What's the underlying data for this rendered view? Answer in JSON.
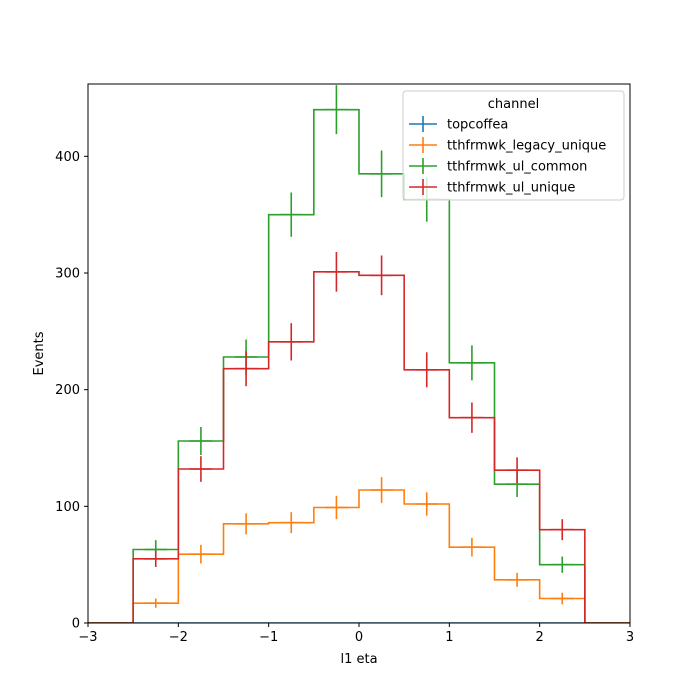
{
  "chart_data": {
    "type": "line",
    "subtype": "step-histogram-with-errorbars",
    "title": "",
    "xlabel": "l1 eta",
    "ylabel": "Events",
    "xlim": [
      -3,
      3
    ],
    "ylim": [
      0,
      462
    ],
    "xticks": [
      -3,
      -2,
      -1,
      0,
      1,
      2,
      3
    ],
    "yticks": [
      0,
      100,
      200,
      300,
      400
    ],
    "bin_edges": [
      -3,
      -2.5,
      -2,
      -1.5,
      -1,
      -0.5,
      0,
      0.5,
      1,
      1.5,
      2,
      2.5,
      3
    ],
    "legend": {
      "title": "channel",
      "position": "top-right"
    },
    "grid": false,
    "series": [
      {
        "name": "topcoffea",
        "color": "#1f77b4",
        "values": [
          0,
          0,
          0,
          0,
          0,
          0,
          0,
          0,
          0,
          0,
          0,
          0
        ],
        "errors": [
          0,
          0,
          0,
          0,
          0,
          0,
          0,
          0,
          0,
          0,
          0,
          0
        ]
      },
      {
        "name": "tthfrmwk_legacy_unique",
        "color": "#ff7f0e",
        "values": [
          0,
          17,
          59,
          85,
          86,
          99,
          114,
          102,
          65,
          37,
          21,
          0
        ],
        "errors": [
          0,
          4,
          8,
          9,
          9,
          10,
          11,
          10,
          8,
          6,
          5,
          0
        ]
      },
      {
        "name": "tthfrmwk_ul_common",
        "color": "#2ca02c",
        "values": [
          0,
          63,
          156,
          228,
          350,
          440,
          385,
          363,
          223,
          119,
          50,
          0
        ],
        "errors": [
          0,
          8,
          12,
          15,
          19,
          21,
          20,
          19,
          15,
          11,
          7,
          0
        ]
      },
      {
        "name": "tthfrmwk_ul_unique",
        "color": "#d62728",
        "values": [
          0,
          55,
          132,
          218,
          241,
          301,
          298,
          217,
          176,
          131,
          80,
          0
        ],
        "errors": [
          0,
          7,
          11,
          15,
          16,
          17,
          17,
          15,
          13,
          11,
          9,
          0
        ]
      }
    ]
  }
}
